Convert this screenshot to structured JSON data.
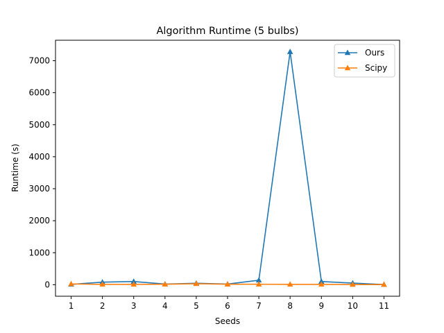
{
  "chart_data": {
    "type": "line",
    "title": "Algorithm Runtime (5 bulbs)",
    "xlabel": "Seeds",
    "ylabel": "Runtime (s)",
    "categories": [
      1,
      2,
      3,
      4,
      5,
      6,
      7,
      8,
      9,
      10,
      11
    ],
    "xlim": [
      0.5,
      11.5
    ],
    "ylim": [
      -360,
      7640
    ],
    "yticks": [
      0,
      1000,
      2000,
      3000,
      4000,
      5000,
      6000,
      7000
    ],
    "grid": false,
    "legend_position": "top-right",
    "series": [
      {
        "name": "Ours",
        "color": "#1f77b4",
        "marker": "triangle-up",
        "values": [
          10,
          80,
          100,
          20,
          45,
          20,
          140,
          7280,
          100,
          50,
          5
        ]
      },
      {
        "name": "Scipy",
        "color": "#ff7f0e",
        "marker": "triangle-up",
        "values": [
          25,
          10,
          10,
          15,
          30,
          15,
          15,
          10,
          10,
          5,
          5
        ]
      }
    ]
  }
}
